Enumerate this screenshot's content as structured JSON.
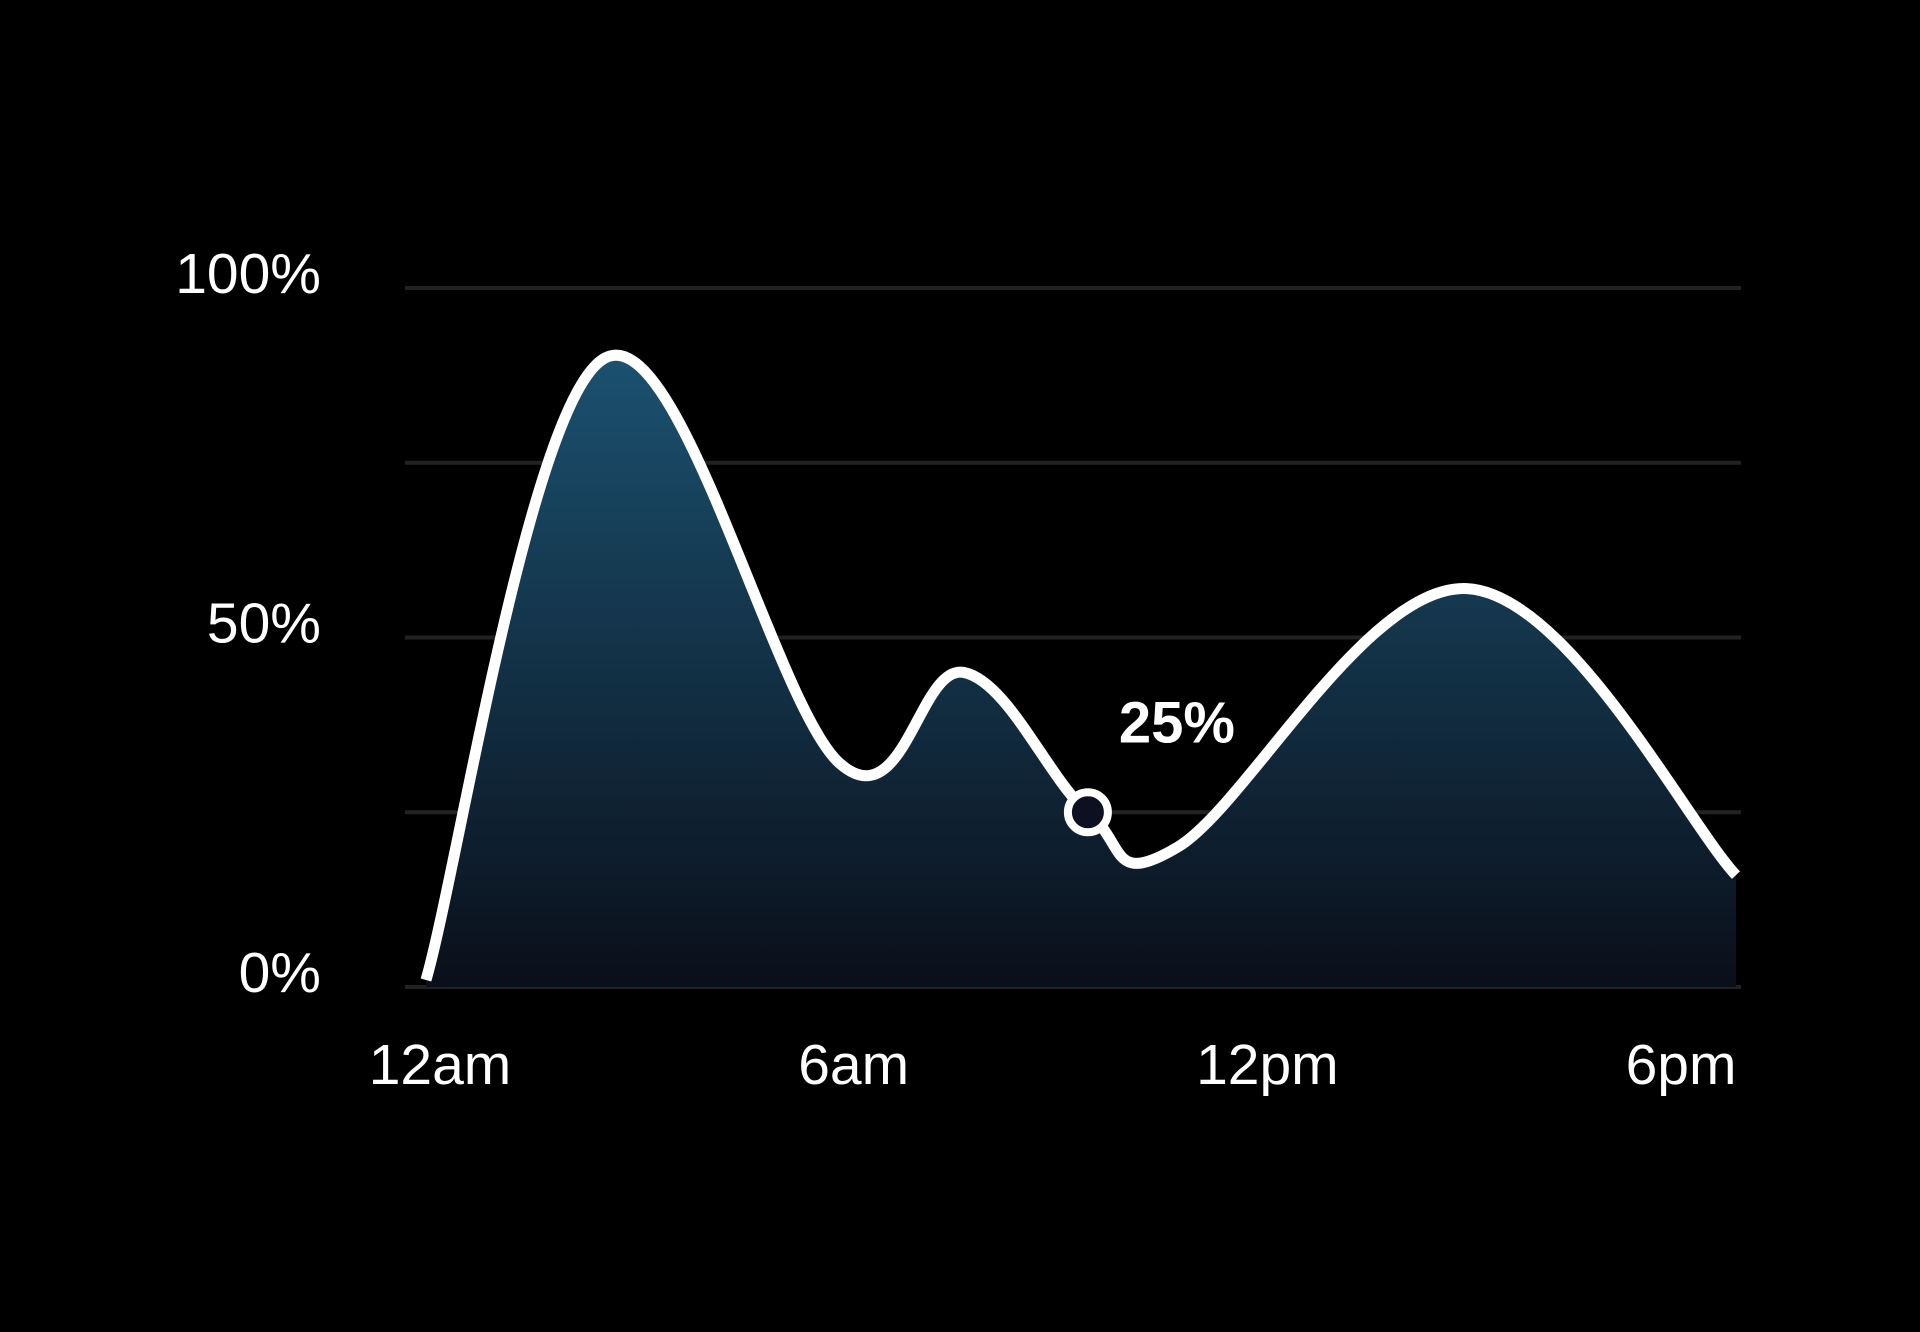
{
  "chart_data": {
    "type": "area",
    "x": [
      0,
      2.6,
      6,
      7.8,
      9.6,
      10.9,
      15.1,
      19
    ],
    "values": [
      1,
      90,
      32,
      45,
      25,
      20,
      57,
      16
    ],
    "value_labels": [
      null,
      null,
      null,
      null,
      "25%",
      null,
      null,
      null
    ],
    "color": "#ffffff",
    "fill_gradient": [
      "#1b5170",
      "#0a0f1a"
    ],
    "xlim": [
      0,
      19
    ],
    "xticks": [
      {
        "value": 0,
        "label": "12am"
      },
      {
        "value": 6,
        "label": "6am"
      },
      {
        "value": 12,
        "label": "12pm"
      },
      {
        "value": 18,
        "label": "6pm"
      }
    ],
    "ylim": [
      0,
      100
    ],
    "yticks": [
      {
        "value": 0,
        "label": "0%"
      },
      {
        "value": 25,
        "label": null
      },
      {
        "value": 50,
        "label": "50%"
      },
      {
        "value": 75,
        "label": null
      },
      {
        "value": 100,
        "label": "100%"
      }
    ],
    "grid": true
  }
}
